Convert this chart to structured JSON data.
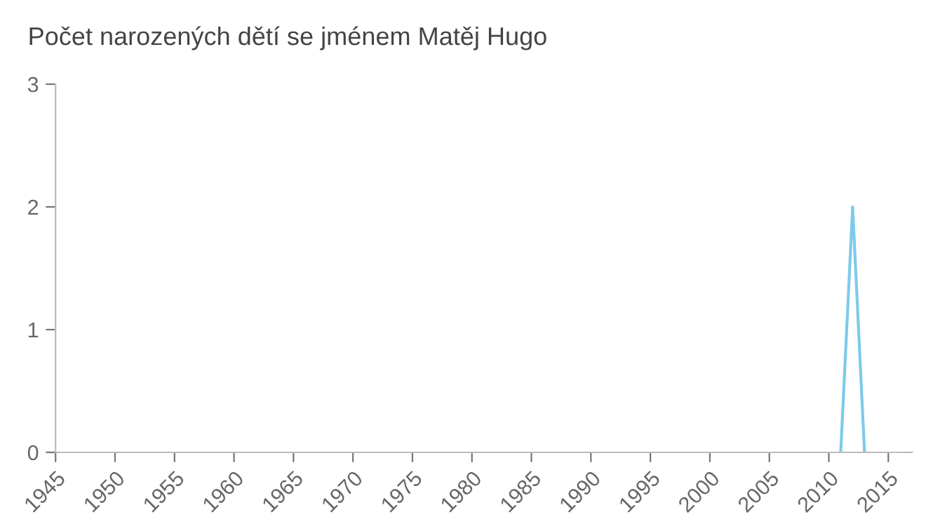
{
  "chart_data": {
    "type": "line",
    "title": "Počet narozených dětí se jménem Matěj Hugo",
    "x": [
      2011,
      2012,
      2013
    ],
    "series": [
      {
        "color": "#7dcbe9",
        "values": [
          0,
          2,
          0
        ]
      }
    ],
    "xlim": [
      1945,
      2017
    ],
    "xticks": [
      1945,
      1950,
      1955,
      1960,
      1965,
      1970,
      1975,
      1980,
      1985,
      1990,
      1995,
      2000,
      2005,
      2010,
      2015
    ],
    "ylim": [
      0,
      3
    ],
    "yticks": [
      0,
      1,
      2,
      3
    ],
    "grid": false,
    "legend": false,
    "marker": "none",
    "line_style": "solid"
  }
}
